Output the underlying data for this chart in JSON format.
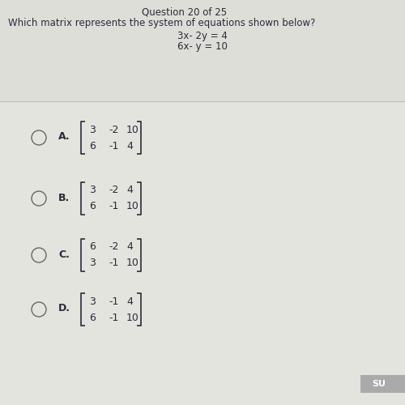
{
  "bg_color": "#d8d8d3",
  "content_bg": "#e8e8e3",
  "title_question": "Question 20 of 25",
  "question_text": "Which matrix represents the system of equations shown below?",
  "eq1": "3x- 2y = 4",
  "eq2": "6x- y = 10",
  "options": [
    {
      "label": "A.",
      "row1": [
        "3",
        "-2",
        "10"
      ],
      "row2": [
        "6",
        "-1",
        "4"
      ]
    },
    {
      "label": "B.",
      "row1": [
        "3",
        "-2",
        "4"
      ],
      "row2": [
        "6",
        "-1",
        "10"
      ]
    },
    {
      "label": "C.",
      "row1": [
        "6",
        "-2",
        "4"
      ],
      "row2": [
        "3",
        "-1",
        "10"
      ]
    },
    {
      "label": "D.",
      "row1": [
        "3",
        "-1",
        "4"
      ],
      "row2": [
        "6",
        "-1",
        "10"
      ]
    }
  ],
  "font_color": "#2a2a3a",
  "title_fontsize": 8.5,
  "question_fontsize": 8.5,
  "eq_fontsize": 8.5,
  "option_label_fontsize": 9,
  "matrix_fontsize": 9,
  "submit_text": "SU",
  "divider_color": "#bbbbbb"
}
